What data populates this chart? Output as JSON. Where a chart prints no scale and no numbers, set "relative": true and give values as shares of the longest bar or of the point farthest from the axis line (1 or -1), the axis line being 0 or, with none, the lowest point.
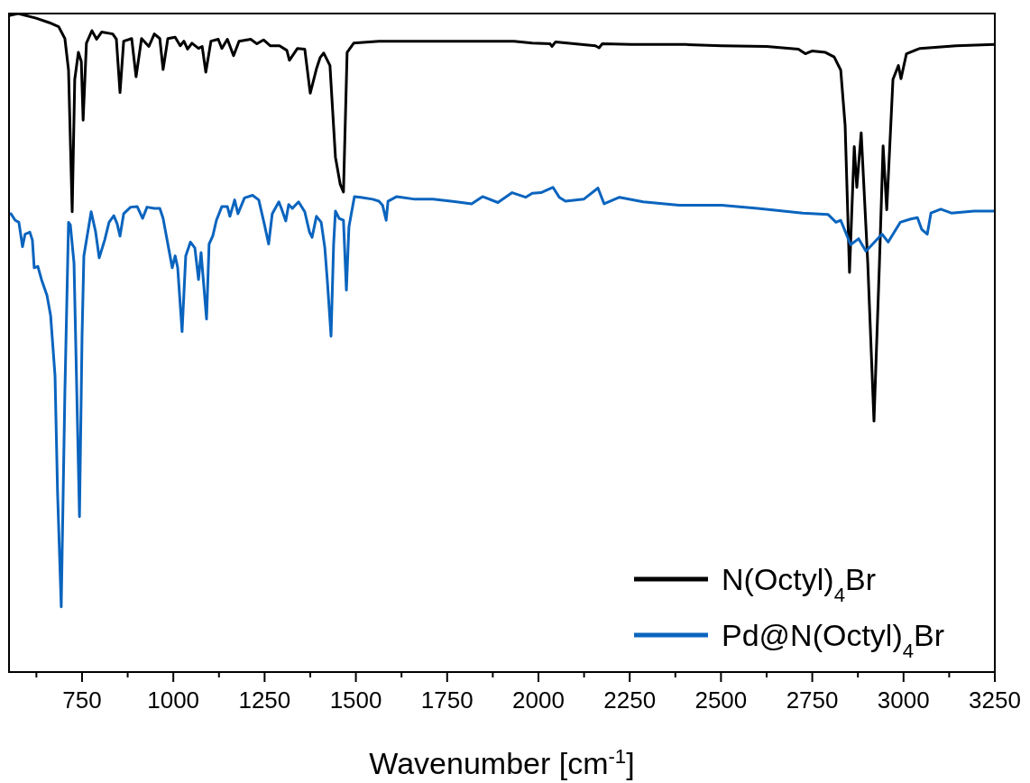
{
  "chart_data": {
    "type": "line",
    "relative": true,
    "xlabel": "Wavenumber [cm$^{-1}$]",
    "xlim": [
      550,
      3250
    ],
    "xticks": [
      {
        "value": 625,
        "label": null
      },
      750,
      {
        "value": 875,
        "label": null
      },
      1000,
      {
        "value": 1125,
        "label": null
      },
      1250,
      {
        "value": 1375,
        "label": null
      },
      1500,
      {
        "value": 1625,
        "label": null
      },
      1750,
      {
        "value": 1875,
        "label": null
      },
      2000,
      {
        "value": 2125,
        "label": null
      },
      2250,
      {
        "value": 2375,
        "label": null
      },
      2500,
      {
        "value": 2625,
        "label": null
      },
      2750,
      {
        "value": 2875,
        "label": null
      },
      3000,
      {
        "value": 3125,
        "label": null
      },
      3250
    ],
    "tick_labels": "x",
    "grid": false,
    "legend": "bottom right",
    "series": [
      {
        "name": "N(Octyl)$_{4}$Br",
        "color": "#000000",
        "x": [
          550,
          575,
          624,
          661,
          686,
          703,
          713,
          723,
          730,
          740,
          748,
          753,
          762,
          777,
          790,
          804,
          834,
          844,
          854,
          864,
          886,
          898,
          913,
          933,
          948,
          963,
          972,
          985,
          1005,
          1019,
          1029,
          1039,
          1051,
          1069,
          1079,
          1089,
          1103,
          1123,
          1133,
          1148,
          1165,
          1180,
          1212,
          1229,
          1247,
          1266,
          1291,
          1311,
          1318,
          1340,
          1360,
          1375,
          1392,
          1402,
          1412,
          1429,
          1444,
          1457,
          1466,
          1476,
          1494,
          1563,
          1760,
          1933,
          1983,
          2032,
          2037,
          2047,
          2156,
          2166,
          2175,
          2254,
          2403,
          2502,
          2625,
          2712,
          2731,
          2749,
          2786,
          2810,
          2828,
          2840,
          2852,
          2865,
          2872,
          2884,
          2902,
          2919,
          2934,
          2944,
          2954,
          2971,
          2986,
          2993,
          3008,
          3045,
          3144,
          3250
        ],
        "values": [
          0.997,
          1.0,
          0.993,
          0.986,
          0.98,
          0.962,
          0.914,
          0.699,
          0.9,
          0.941,
          0.927,
          0.838,
          0.955,
          0.974,
          0.961,
          0.972,
          0.969,
          0.961,
          0.88,
          0.958,
          0.962,
          0.904,
          0.962,
          0.95,
          0.969,
          0.962,
          0.915,
          0.962,
          0.964,
          0.951,
          0.958,
          0.946,
          0.955,
          0.947,
          0.95,
          0.911,
          0.958,
          0.961,
          0.947,
          0.961,
          0.936,
          0.958,
          0.961,
          0.954,
          0.96,
          0.951,
          0.951,
          0.944,
          0.929,
          0.947,
          0.946,
          0.879,
          0.916,
          0.933,
          0.94,
          0.921,
          0.782,
          0.741,
          0.729,
          0.941,
          0.955,
          0.958,
          0.958,
          0.958,
          0.955,
          0.954,
          0.95,
          0.957,
          0.951,
          0.948,
          0.954,
          0.953,
          0.953,
          0.951,
          0.95,
          0.946,
          0.939,
          0.943,
          0.941,
          0.934,
          0.914,
          0.83,
          0.607,
          0.798,
          0.736,
          0.819,
          0.621,
          0.381,
          0.621,
          0.799,
          0.702,
          0.9,
          0.921,
          0.901,
          0.939,
          0.947,
          0.951,
          0.953
        ]
      },
      {
        "name": "Pd@N(Octyl)$_{4}$Br",
        "color": "#0a64be",
        "x": [
          555,
          567,
          577,
          587,
          594,
          607,
          614,
          619,
          629,
          639,
          654,
          664,
          676,
          683,
          693,
          703,
          713,
          718,
          728,
          743,
          750,
          755,
          775,
          787,
          797,
          812,
          824,
          837,
          846,
          854,
          864,
          883,
          901,
          916,
          928,
          948,
          963,
          972,
          987,
          997,
          1005,
          1012,
          1024,
          1034,
          1047,
          1059,
          1069,
          1076,
          1091,
          1098,
          1108,
          1118,
          1133,
          1148,
          1155,
          1168,
          1177,
          1195,
          1217,
          1234,
          1249,
          1261,
          1271,
          1289,
          1296,
          1308,
          1316,
          1326,
          1343,
          1360,
          1373,
          1380,
          1392,
          1405,
          1415,
          1422,
          1432,
          1439,
          1444,
          1454,
          1466,
          1474,
          1481,
          1496,
          1513,
          1546,
          1563,
          1573,
          1583,
          1588,
          1612,
          1662,
          1711,
          1760,
          1817,
          1847,
          1889,
          1928,
          1965,
          1983,
          2007,
          2040,
          2057,
          2074,
          2124,
          2163,
          2180,
          2222,
          2287,
          2385,
          2502,
          2600,
          2724,
          2793,
          2815,
          2828,
          2855,
          2877,
          2897,
          2941,
          2958,
          2991,
          3020,
          3038,
          3050,
          3065,
          3075,
          3102,
          3131,
          3193,
          3250
        ],
        "values": [
          0.696,
          0.686,
          0.683,
          0.646,
          0.665,
          0.668,
          0.656,
          0.614,
          0.616,
          0.596,
          0.572,
          0.541,
          0.45,
          0.272,
          0.099,
          0.425,
          0.683,
          0.679,
          0.621,
          0.236,
          0.509,
          0.632,
          0.699,
          0.669,
          0.629,
          0.656,
          0.683,
          0.693,
          0.681,
          0.662,
          0.696,
          0.706,
          0.707,
          0.689,
          0.706,
          0.704,
          0.704,
          0.689,
          0.644,
          0.614,
          0.632,
          0.614,
          0.517,
          0.632,
          0.653,
          0.644,
          0.596,
          0.637,
          0.536,
          0.65,
          0.662,
          0.686,
          0.707,
          0.707,
          0.692,
          0.717,
          0.696,
          0.72,
          0.724,
          0.717,
          0.681,
          0.65,
          0.696,
          0.714,
          0.704,
          0.685,
          0.71,
          0.704,
          0.714,
          0.699,
          0.668,
          0.66,
          0.692,
          0.683,
          0.644,
          0.593,
          0.51,
          0.649,
          0.7,
          0.689,
          0.686,
          0.58,
          0.676,
          0.722,
          0.721,
          0.718,
          0.715,
          0.709,
          0.686,
          0.715,
          0.722,
          0.718,
          0.718,
          0.715,
          0.711,
          0.722,
          0.713,
          0.728,
          0.721,
          0.727,
          0.728,
          0.736,
          0.721,
          0.715,
          0.718,
          0.735,
          0.711,
          0.721,
          0.714,
          0.709,
          0.709,
          0.704,
          0.697,
          0.695,
          0.683,
          0.686,
          0.649,
          0.658,
          0.639,
          0.665,
          0.653,
          0.683,
          0.688,
          0.69,
          0.672,
          0.665,
          0.697,
          0.703,
          0.697,
          0.7,
          0.7
        ]
      }
    ]
  }
}
